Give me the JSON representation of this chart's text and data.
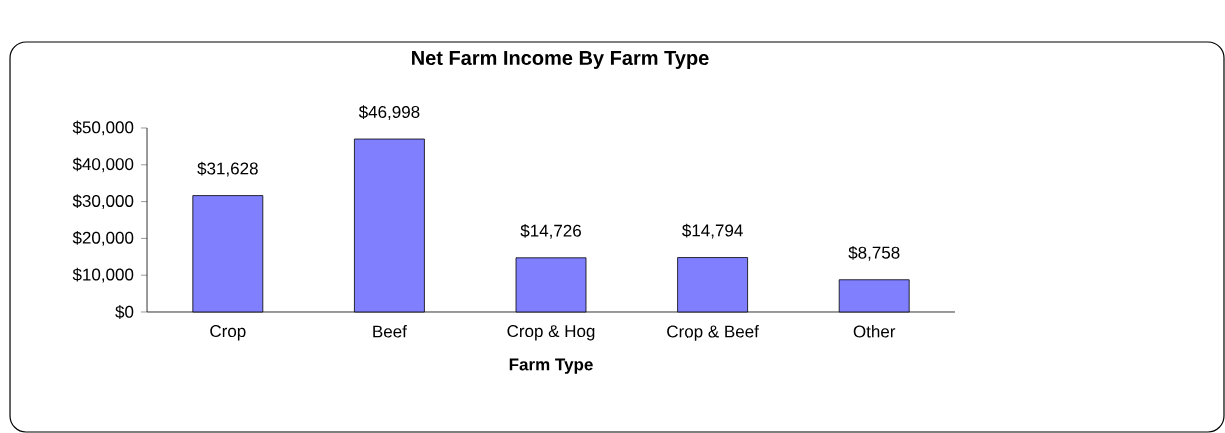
{
  "chart_data": {
    "type": "bar",
    "title": "Net Farm Income By Farm Type",
    "xlabel": "Farm Type",
    "categories": [
      "Crop",
      "Beef",
      "Crop & Hog",
      "Crop & Beef",
      "Other"
    ],
    "values": [
      31628,
      46998,
      14726,
      14794,
      8758
    ],
    "value_labels": [
      "$31,628",
      "$46,998",
      "$14,726",
      "$14,794",
      "$8,758"
    ],
    "color": "#8080ff",
    "ylim": [
      0,
      50000
    ],
    "yticks": [
      {
        "value": 0,
        "label": "$0"
      },
      {
        "value": 10000,
        "label": "$10,000"
      },
      {
        "value": 20000,
        "label": "$20,000"
      },
      {
        "value": 30000,
        "label": "$30,000"
      },
      {
        "value": 40000,
        "label": "$40,000"
      },
      {
        "value": 50000,
        "label": "$50,000"
      }
    ],
    "grid": false
  }
}
